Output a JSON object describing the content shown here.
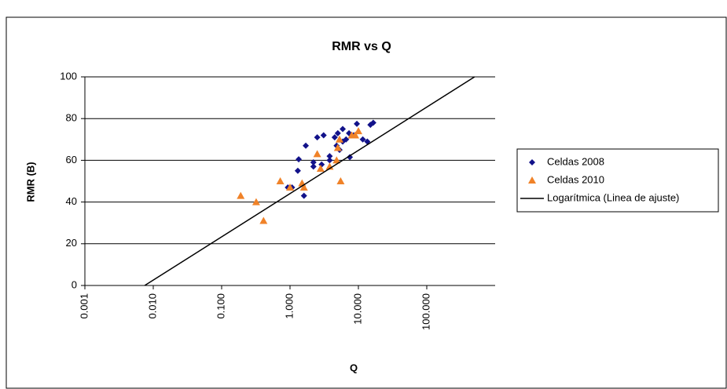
{
  "chart_data": {
    "type": "scatter",
    "title": "RMR vs Q",
    "xlabel": "Q",
    "ylabel": "RMR (B)",
    "xscale": "log",
    "xlim": [
      0.001,
      1000
    ],
    "xticks": [
      0.001,
      {
        "value": 0.01,
        "label": "0.010"
      },
      {
        "value": 0.1,
        "label": "0.100"
      },
      {
        "value": 1,
        "label": "1.000"
      },
      {
        "value": 10,
        "label": "10.000"
      },
      {
        "value": 100,
        "label": "100.000"
      }
    ],
    "ylim": [
      0,
      100
    ],
    "yticks": [
      0,
      20,
      40,
      60,
      80,
      100
    ],
    "grid": true,
    "legend": "right",
    "series": [
      {
        "name": "Celdas 2008",
        "color": "#12128a",
        "marker": "diamond",
        "x": [
          1.34,
          1.3,
          1.07,
          0.93,
          1.6,
          1.7,
          2.2,
          2.2,
          2.5,
          3.1,
          2.9,
          3.8,
          3.8,
          4.5,
          4.8,
          5.0,
          5.3,
          5.9,
          6.6,
          7.5,
          8.5,
          9.5,
          11.6,
          13.5,
          15,
          16.5,
          5.9,
          7.3
        ],
        "values": [
          60.5,
          55,
          47,
          47,
          43,
          67,
          57,
          59,
          71,
          72,
          58,
          62,
          60,
          71,
          67,
          73,
          65,
          75,
          70,
          61.5,
          72,
          77.5,
          70,
          69,
          77,
          78,
          69,
          73
        ]
      },
      {
        "name": "Celdas 2010",
        "color": "#f08228",
        "marker": "triangle",
        "x": [
          0.19,
          0.32,
          0.41,
          0.72,
          1.0,
          1.5,
          1.6,
          2.5,
          2.8,
          3.8,
          4.8,
          5,
          5.5,
          5.3,
          8,
          10,
          9
        ],
        "values": [
          43,
          40,
          31,
          50,
          47,
          49,
          47,
          63,
          56,
          57,
          60,
          66,
          50,
          70,
          72,
          74,
          72
        ]
      },
      {
        "name": "Logarítmica (Linea de ajuste)",
        "color": "#000000",
        "type": "line",
        "x": [
          0.0075,
          500
        ],
        "values": [
          0,
          100
        ]
      }
    ]
  }
}
